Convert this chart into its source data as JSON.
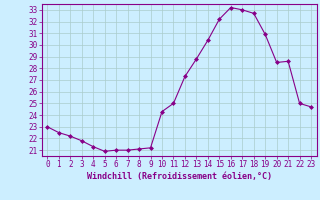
{
  "x": [
    0,
    1,
    2,
    3,
    4,
    5,
    6,
    7,
    8,
    9,
    10,
    11,
    12,
    13,
    14,
    15,
    16,
    17,
    18,
    19,
    20,
    21,
    22,
    23
  ],
  "y": [
    23.0,
    22.5,
    22.2,
    21.8,
    21.3,
    20.9,
    21.0,
    21.0,
    21.1,
    21.2,
    24.3,
    25.0,
    27.3,
    28.8,
    30.4,
    32.2,
    33.2,
    33.0,
    32.7,
    30.9,
    28.5,
    28.6,
    25.0,
    24.7
  ],
  "line_color": "#880088",
  "marker": "D",
  "marker_size": 2.0,
  "bg_color": "#cceeff",
  "grid_color": "#aacccc",
  "xlabel": "Windchill (Refroidissement éolien,°C)",
  "xlim": [
    -0.5,
    23.5
  ],
  "ylim": [
    20.5,
    33.5
  ],
  "yticks": [
    21,
    22,
    23,
    24,
    25,
    26,
    27,
    28,
    29,
    30,
    31,
    32,
    33
  ],
  "xticks": [
    0,
    1,
    2,
    3,
    4,
    5,
    6,
    7,
    8,
    9,
    10,
    11,
    12,
    13,
    14,
    15,
    16,
    17,
    18,
    19,
    20,
    21,
    22,
    23
  ],
  "tick_color": "#880088",
  "label_color": "#880088",
  "tick_fontsize": 5.5,
  "xlabel_fontsize": 6.0
}
